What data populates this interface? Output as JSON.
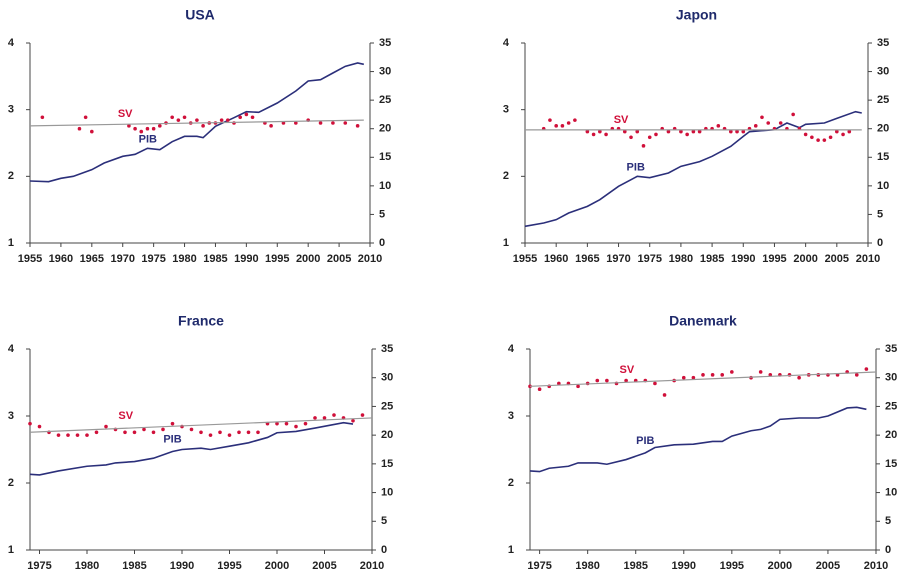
{
  "chart_data": [
    {
      "type": "line",
      "title": "USA",
      "xlim": [
        1955,
        2010
      ],
      "xticks": [
        1955,
        1960,
        1965,
        1970,
        1975,
        1980,
        1985,
        1990,
        1995,
        2000,
        2005,
        2010
      ],
      "ylim": [
        1,
        4
      ],
      "yticks": [
        1,
        2,
        3,
        4
      ],
      "y2lim": [
        0,
        35
      ],
      "y2ticks": [
        0,
        5,
        10,
        15,
        20,
        25,
        30,
        35
      ],
      "series": [
        {
          "name": "PIB",
          "type": "line",
          "color": "#2b2f7a",
          "axis": "y",
          "x": [
            1955,
            1958,
            1960,
            1962,
            1965,
            1967,
            1970,
            1972,
            1974,
            1976,
            1978,
            1980,
            1982,
            1983,
            1985,
            1988,
            1990,
            1992,
            1995,
            1998,
            2000,
            2002,
            2004,
            2006,
            2008,
            2009
          ],
          "values": [
            1.93,
            1.92,
            1.97,
            2.0,
            2.1,
            2.2,
            2.3,
            2.33,
            2.42,
            2.4,
            2.52,
            2.6,
            2.6,
            2.58,
            2.75,
            2.88,
            2.97,
            2.96,
            3.1,
            3.28,
            3.43,
            3.45,
            3.55,
            3.65,
            3.7,
            3.68
          ]
        },
        {
          "name": "SV",
          "type": "scatter",
          "color": "#d0103a",
          "axis": "y2",
          "x": [
            1957,
            1963,
            1964,
            1965,
            1971,
            1972,
            1973,
            1974,
            1975,
            1976,
            1977,
            1978,
            1979,
            1980,
            1981,
            1982,
            1983,
            1984,
            1985,
            1986,
            1987,
            1988,
            1989,
            1990,
            1991,
            1993,
            1994,
            1996,
            1998,
            2000,
            2002,
            2004,
            2006,
            2008
          ],
          "values": [
            22,
            20,
            22,
            19.5,
            20.5,
            20,
            19.5,
            20,
            20,
            20.5,
            21,
            22,
            21.5,
            22,
            21,
            21.5,
            20.5,
            21,
            21,
            21.5,
            21.5,
            21,
            22,
            22.5,
            22,
            21,
            20.5,
            21,
            21,
            21.5,
            21,
            21,
            21,
            20.5
          ]
        },
        {
          "type": "trend",
          "color": "#999999",
          "axis": "y2",
          "x": [
            1955,
            2009
          ],
          "values": [
            20.5,
            21.5
          ]
        }
      ]
    },
    {
      "type": "line",
      "title": "Japon",
      "xlim": [
        1955,
        2010
      ],
      "xticks": [
        1955,
        1960,
        1965,
        1970,
        1975,
        1980,
        1985,
        1990,
        1995,
        2000,
        2005,
        2010
      ],
      "ylim": [
        1,
        4
      ],
      "yticks": [
        1,
        2,
        3,
        4
      ],
      "y2lim": [
        0,
        35
      ],
      "y2ticks": [
        0,
        5,
        10,
        15,
        20,
        25,
        30,
        35
      ],
      "series": [
        {
          "name": "PIB",
          "type": "line",
          "color": "#2b2f7a",
          "axis": "y",
          "x": [
            1955,
            1958,
            1960,
            1962,
            1965,
            1967,
            1970,
            1972,
            1973,
            1975,
            1978,
            1980,
            1983,
            1985,
            1988,
            1990,
            1991,
            1995,
            1997,
            1999,
            2000,
            2003,
            2005,
            2008,
            2009
          ],
          "values": [
            1.25,
            1.3,
            1.35,
            1.45,
            1.55,
            1.65,
            1.85,
            1.95,
            2.0,
            1.98,
            2.05,
            2.15,
            2.22,
            2.3,
            2.45,
            2.6,
            2.67,
            2.7,
            2.8,
            2.73,
            2.78,
            2.8,
            2.87,
            2.97,
            2.95
          ]
        },
        {
          "name": "SV",
          "type": "scatter",
          "color": "#d0103a",
          "axis": "y2",
          "x": [
            1958,
            1959,
            1960,
            1961,
            1962,
            1963,
            1965,
            1966,
            1967,
            1968,
            1969,
            1970,
            1971,
            1972,
            1973,
            1974,
            1975,
            1976,
            1977,
            1978,
            1979,
            1980,
            1981,
            1982,
            1983,
            1984,
            1985,
            1986,
            1987,
            1988,
            1989,
            1990,
            1991,
            1992,
            1993,
            1994,
            1995,
            1996,
            1997,
            1998,
            1999,
            2000,
            2001,
            2002,
            2003,
            2004,
            2005,
            2006,
            2007
          ],
          "values": [
            20,
            21.5,
            20.5,
            20.5,
            21,
            21.5,
            19.5,
            19,
            19.5,
            19,
            20,
            20,
            19.5,
            18.5,
            19.5,
            17,
            18.5,
            19,
            20,
            19.5,
            20,
            19.5,
            19,
            19.5,
            19.5,
            20,
            20,
            20.5,
            20,
            19.5,
            19.5,
            19.5,
            20,
            20.5,
            22,
            21,
            20,
            21,
            20,
            22.5,
            20,
            19,
            18.5,
            18,
            18,
            18.5,
            19.5,
            19,
            19.5
          ]
        },
        {
          "type": "trend",
          "color": "#999999",
          "axis": "y2",
          "x": [
            1955,
            2009
          ],
          "values": [
            19.8,
            19.8
          ]
        }
      ]
    },
    {
      "type": "line",
      "title": "France",
      "xlim": [
        1974,
        2010
      ],
      "xticks": [
        1975,
        1980,
        1985,
        1990,
        1995,
        2000,
        2005,
        2010
      ],
      "ylim": [
        1,
        4
      ],
      "yticks": [
        1,
        2,
        3,
        4
      ],
      "y2lim": [
        0,
        35
      ],
      "y2ticks": [
        0,
        5,
        10,
        15,
        20,
        25,
        30,
        35
      ],
      "series": [
        {
          "name": "PIB",
          "type": "line",
          "color": "#2b2f7a",
          "axis": "y",
          "x": [
            1974,
            1975,
            1977,
            1980,
            1982,
            1983,
            1985,
            1987,
            1989,
            1990,
            1992,
            1993,
            1995,
            1997,
            1999,
            2000,
            2002,
            2004,
            2007,
            2008
          ],
          "values": [
            2.13,
            2.12,
            2.18,
            2.25,
            2.27,
            2.3,
            2.32,
            2.37,
            2.47,
            2.5,
            2.52,
            2.5,
            2.55,
            2.6,
            2.68,
            2.75,
            2.77,
            2.82,
            2.9,
            2.88
          ]
        },
        {
          "name": "SV",
          "type": "scatter",
          "color": "#d0103a",
          "axis": "y2",
          "x": [
            1974,
            1975,
            1976,
            1977,
            1978,
            1979,
            1980,
            1981,
            1982,
            1983,
            1984,
            1985,
            1986,
            1987,
            1988,
            1989,
            1990,
            1991,
            1992,
            1993,
            1994,
            1995,
            1996,
            1997,
            1998,
            1999,
            2000,
            2001,
            2002,
            2003,
            2004,
            2005,
            2006,
            2007,
            2008,
            2009
          ],
          "values": [
            22,
            21.5,
            20.5,
            20,
            20,
            20,
            20,
            20.5,
            21.5,
            21,
            20.5,
            20.5,
            21,
            20.5,
            21,
            22,
            21.5,
            21,
            20.5,
            20,
            20.5,
            20,
            20.5,
            20.5,
            20.5,
            22,
            22,
            22,
            21.5,
            22,
            23,
            23,
            23.5,
            23,
            22.5,
            23.5
          ]
        },
        {
          "type": "trend",
          "color": "#999999",
          "axis": "y2",
          "x": [
            1974,
            2010
          ],
          "values": [
            20.5,
            23
          ]
        }
      ]
    },
    {
      "type": "line",
      "title": "Danemark",
      "xlim": [
        1974,
        2010
      ],
      "xticks": [
        1975,
        1980,
        1985,
        1990,
        1995,
        2000,
        2005,
        2010
      ],
      "ylim": [
        1,
        4
      ],
      "yticks": [
        1,
        2,
        3,
        4
      ],
      "y2lim": [
        0,
        35
      ],
      "y2ticks": [
        0,
        5,
        10,
        15,
        20,
        25,
        30,
        35
      ],
      "series": [
        {
          "name": "PIB",
          "type": "line",
          "color": "#2b2f7a",
          "axis": "y",
          "x": [
            1974,
            1975,
            1976,
            1978,
            1979,
            1981,
            1982,
            1984,
            1986,
            1987,
            1989,
            1991,
            1993,
            1994,
            1995,
            1997,
            1998,
            1999,
            2000,
            2002,
            2004,
            2005,
            2007,
            2008,
            2009
          ],
          "values": [
            2.18,
            2.17,
            2.22,
            2.25,
            2.3,
            2.3,
            2.28,
            2.35,
            2.45,
            2.53,
            2.57,
            2.58,
            2.62,
            2.62,
            2.7,
            2.78,
            2.8,
            2.85,
            2.95,
            2.97,
            2.97,
            3.0,
            3.12,
            3.13,
            3.1
          ]
        },
        {
          "name": "SV",
          "type": "scatter",
          "color": "#d0103a",
          "axis": "y2",
          "x": [
            1974,
            1975,
            1976,
            1977,
            1978,
            1979,
            1980,
            1981,
            1982,
            1983,
            1984,
            1985,
            1986,
            1987,
            1988,
            1989,
            1990,
            1991,
            1992,
            1993,
            1994,
            1995,
            1997,
            1998,
            1999,
            2000,
            2001,
            2002,
            2003,
            2004,
            2005,
            2006,
            2007,
            2008,
            2009
          ],
          "values": [
            28.5,
            28,
            28.5,
            29,
            29,
            28.5,
            29,
            29.5,
            29.5,
            29,
            29.5,
            29.5,
            29.5,
            29,
            27,
            29.5,
            30,
            30,
            30.5,
            30.5,
            30.5,
            31,
            30,
            31,
            30.5,
            30.5,
            30.5,
            30,
            30.5,
            30.5,
            30.5,
            30.5,
            31,
            30.5,
            31.5
          ]
        },
        {
          "type": "trend",
          "color": "#999999",
          "axis": "y2",
          "x": [
            1974,
            2010
          ],
          "values": [
            28.5,
            31
          ]
        }
      ]
    }
  ]
}
